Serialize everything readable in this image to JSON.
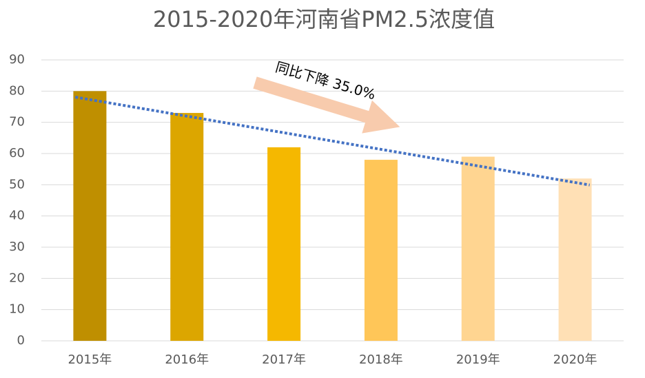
{
  "chart_data": {
    "type": "bar",
    "title": "2015-2020年河南省PM2.5浓度值",
    "categories": [
      "2015年",
      "2016年",
      "2017年",
      "2018年",
      "2019年",
      "2020年"
    ],
    "values": [
      80,
      73,
      62,
      58,
      59,
      52
    ],
    "colors": [
      "#bf8f00",
      "#dca600",
      "#f5b800",
      "#ffc658",
      "#ffd591",
      "#ffe0b5"
    ],
    "ylim": [
      0,
      90
    ],
    "yticks": [
      0,
      10,
      20,
      30,
      40,
      50,
      60,
      70,
      80,
      90
    ],
    "grid": true,
    "trendline": {
      "type": "linear",
      "color": "#4472c4"
    },
    "annotation": "同比下降 35.0%"
  }
}
